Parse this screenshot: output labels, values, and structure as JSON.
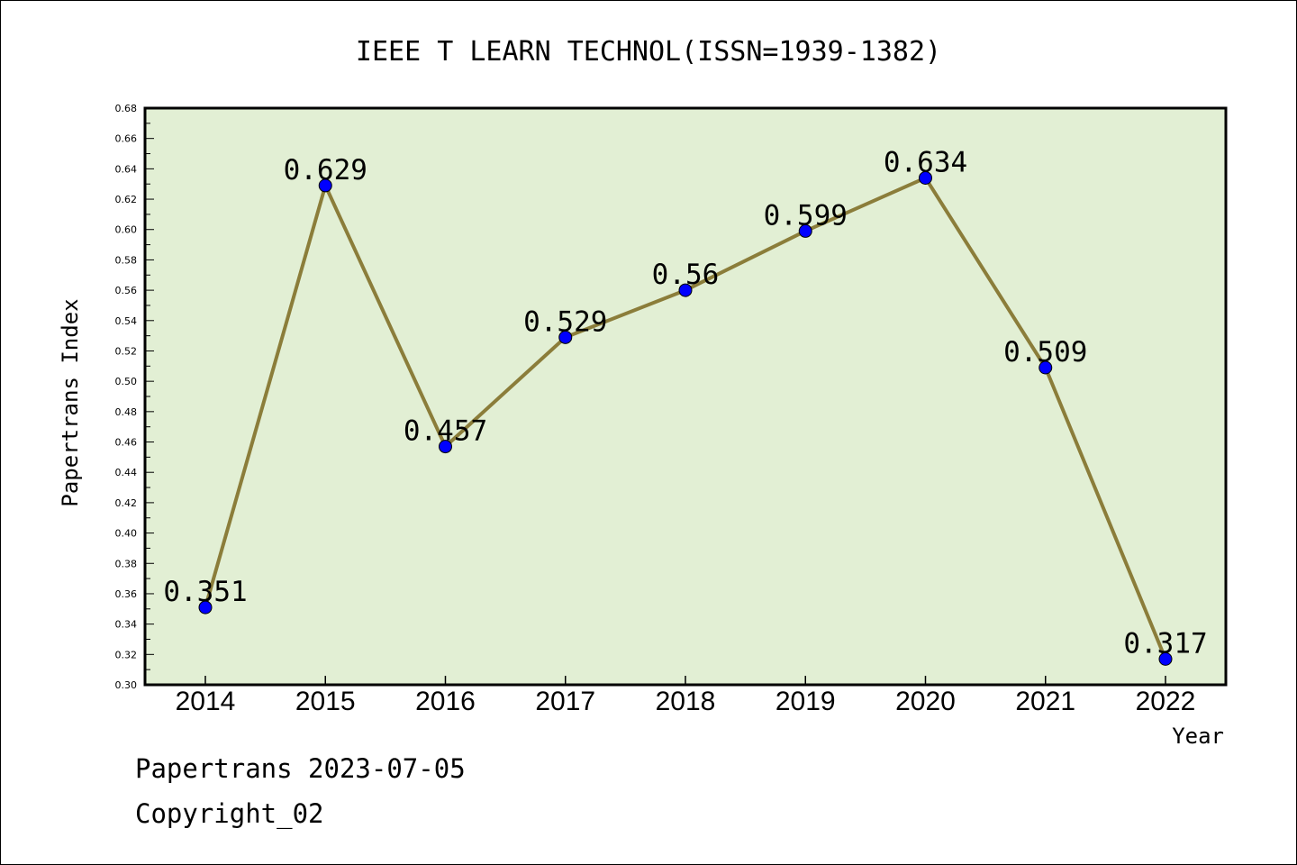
{
  "chart_data": {
    "type": "line",
    "title": "IEEE T LEARN TECHNOL(ISSN=1939-1382)",
    "xlabel": "Year",
    "ylabel": "Papertrans Index",
    "categories": [
      "2014",
      "2015",
      "2016",
      "2017",
      "2018",
      "2019",
      "2020",
      "2021",
      "2022"
    ],
    "values": [
      0.351,
      0.629,
      0.457,
      0.529,
      0.56,
      0.599,
      0.634,
      0.509,
      0.317
    ],
    "data_labels": [
      "0.351",
      "0.629",
      "0.457",
      "0.529",
      "0.56",
      "0.599",
      "0.634",
      "0.509",
      "0.317"
    ],
    "ylim": [
      0.3,
      0.68
    ],
    "yticks": [
      "0.30",
      "0.32",
      "0.34",
      "0.36",
      "0.38",
      "0.40",
      "0.42",
      "0.44",
      "0.46",
      "0.48",
      "0.50",
      "0.52",
      "0.54",
      "0.56",
      "0.58",
      "0.60",
      "0.62",
      "0.64",
      "0.66",
      "0.68"
    ],
    "grid": false,
    "colors": {
      "plot_background": "#e2efd4",
      "line": "#8b7d3a",
      "marker": "#0000ff"
    }
  },
  "footer": {
    "line1": "Papertrans 2023-07-05",
    "line2": "Copyright_02"
  }
}
